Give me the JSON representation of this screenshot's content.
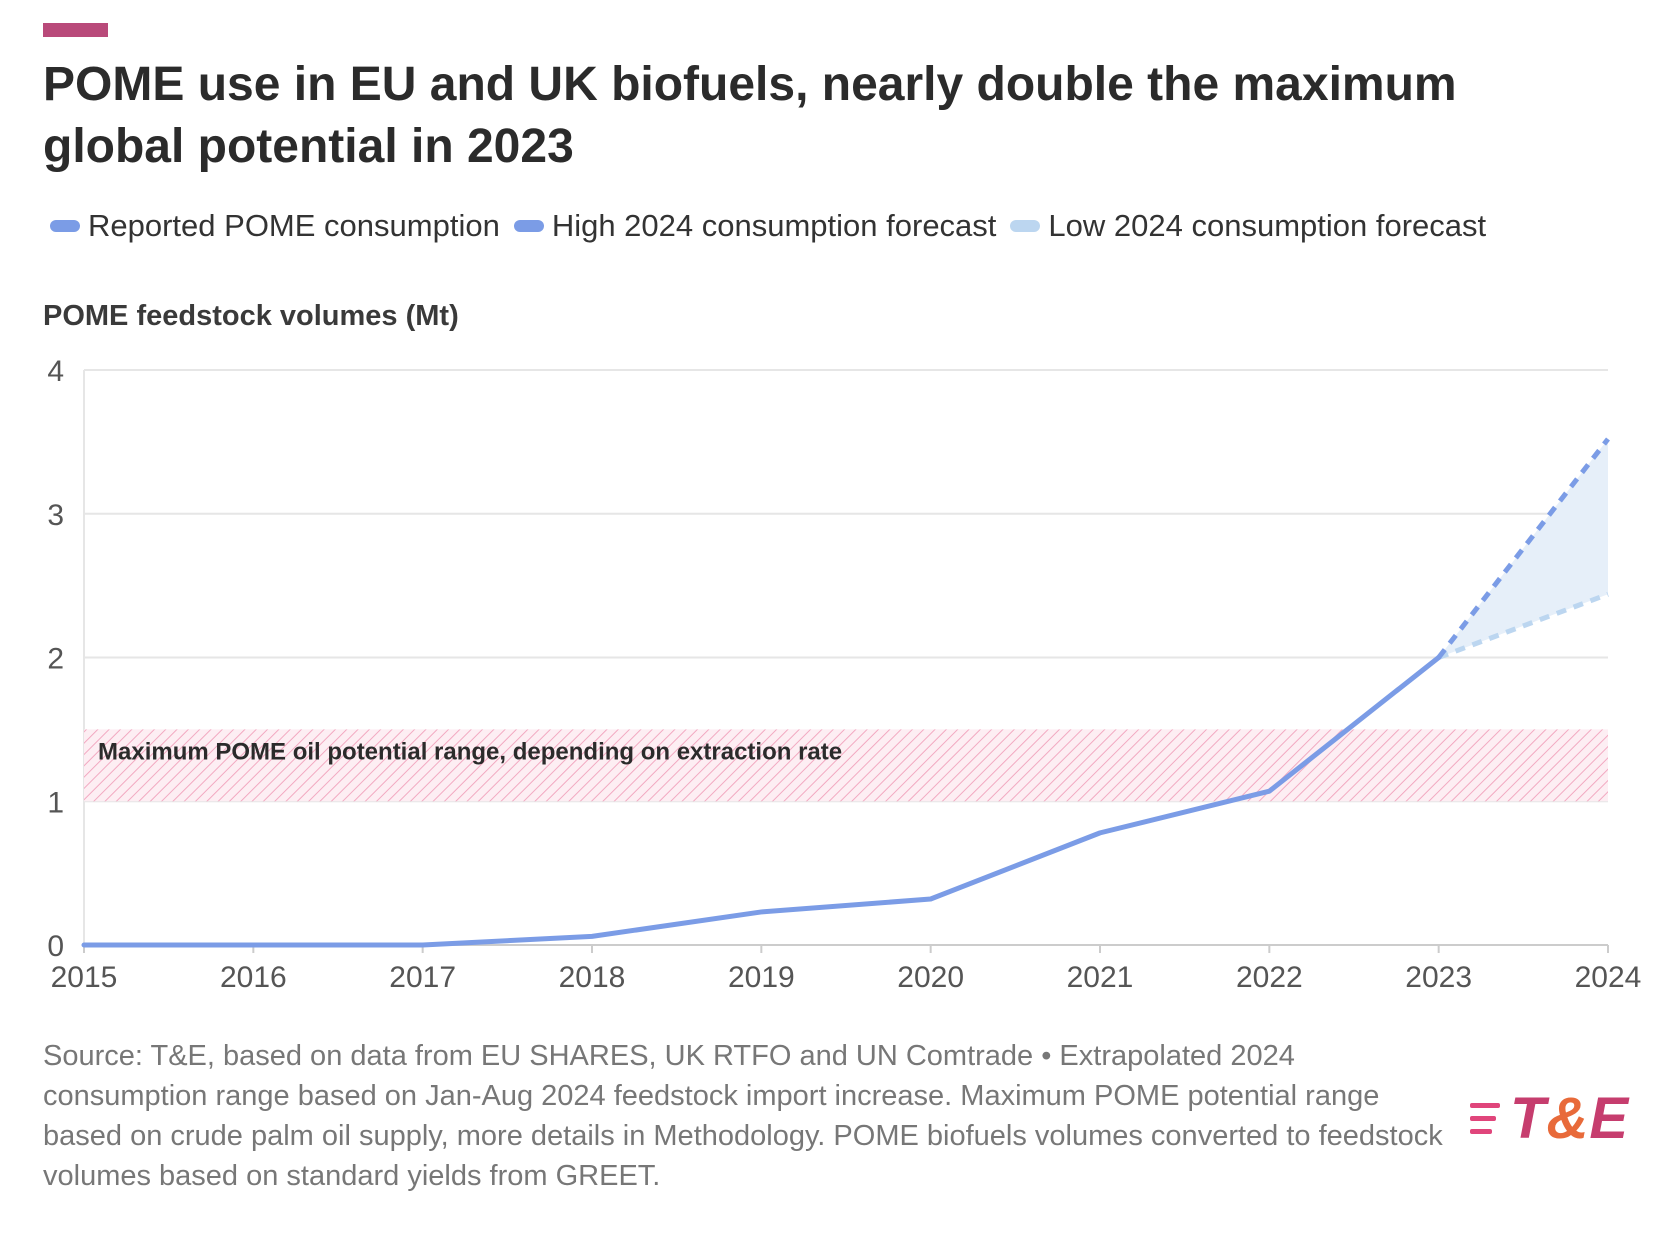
{
  "header": {
    "title": "POME use in EU and UK biofuels, nearly double the maximum global potential in 2023",
    "accent_color": "#b94a7a"
  },
  "legend": [
    {
      "label": "Reported POME consumption",
      "color": "#7b9ce6"
    },
    {
      "label": "High 2024 consumption forecast",
      "color": "#7b9ce6"
    },
    {
      "label": "Low 2024 consumption forecast",
      "color": "#bcd6f0"
    }
  ],
  "chart_data": {
    "type": "line",
    "title": "POME use in EU and UK biofuels, nearly double the maximum global potential in 2023",
    "ylabel": "POME feedstock volumes (Mt)",
    "xlabel": "",
    "x": [
      2015,
      2016,
      2017,
      2018,
      2019,
      2020,
      2021,
      2022,
      2023,
      2024
    ],
    "x_ticks": [
      "2015",
      "2016",
      "2017",
      "2018",
      "2019",
      "2020",
      "2021",
      "2022",
      "2023",
      "2024"
    ],
    "y_ticks": [
      "0",
      "1",
      "2",
      "3",
      "4"
    ],
    "ylim": [
      0,
      4
    ],
    "xlim": [
      2015,
      2024
    ],
    "grid": true,
    "legend_position": "top",
    "series": [
      {
        "name": "Reported POME consumption",
        "style": "solid",
        "color": "#7b9ce6",
        "x": [
          2015,
          2016,
          2017,
          2018,
          2019,
          2020,
          2021,
          2022,
          2023
        ],
        "y": [
          0.0,
          0.0,
          0.0,
          0.06,
          0.23,
          0.32,
          0.78,
          1.07,
          2.0
        ]
      },
      {
        "name": "High 2024 consumption forecast",
        "style": "dashed",
        "color": "#7b9ce6",
        "x": [
          2023,
          2024
        ],
        "y": [
          2.0,
          3.52
        ]
      },
      {
        "name": "Low 2024 consumption forecast",
        "style": "dashed",
        "color": "#bcd6f0",
        "x": [
          2023,
          2024
        ],
        "y": [
          2.0,
          2.44
        ]
      }
    ],
    "forecast_area_color": "#e6eff9",
    "band": {
      "label": "Maximum POME oil potential range, depending on extraction rate",
      "y_min": 1.0,
      "y_max": 1.5,
      "x_from": 2015,
      "x_to": 2024,
      "color": "#f2a9c1"
    }
  },
  "footer": {
    "source": "Source: T&E, based on data from EU SHARES, UK RTFO and UN Comtrade • Extrapolated 2024 consumption range based on Jan-Aug 2024 feedstock import increase. Maximum POME potential range based on crude palm oil supply, more details in Methodology. POME biofuels volumes converted to feedstock volumes based on standard yields from GREET.",
    "logo_left": "T",
    "logo_amp": "&",
    "logo_right": "E"
  }
}
